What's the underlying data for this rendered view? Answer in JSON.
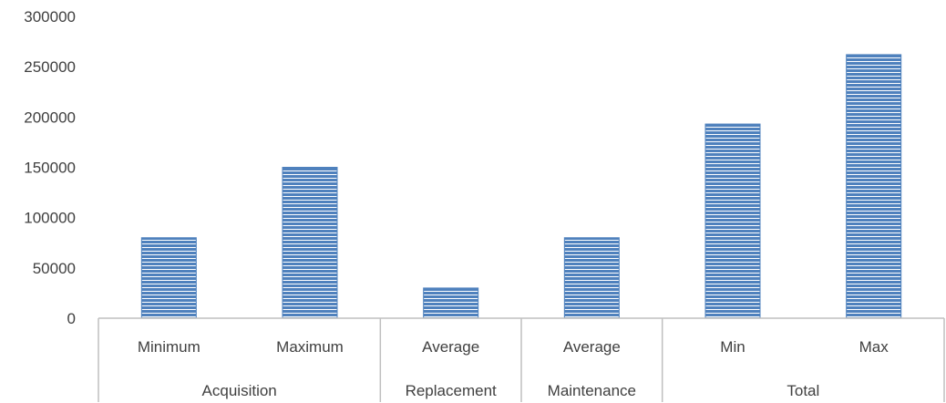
{
  "chart_data": {
    "type": "bar",
    "title": "",
    "xlabel": "",
    "ylabel": "",
    "ylim": [
      0,
      300000
    ],
    "yticks": [
      "0",
      "50000",
      "100000",
      "150000",
      "200000",
      "250000",
      "300000"
    ],
    "categories": [
      "Minimum",
      "Maximum",
      "Average",
      "Average",
      "Min",
      "Max"
    ],
    "groups": [
      {
        "label": "Acquisition",
        "count": 2
      },
      {
        "label": "Replacement",
        "count": 1
      },
      {
        "label": "Maintenance",
        "count": 1
      },
      {
        "label": "Total",
        "count": 2
      }
    ],
    "values": [
      80000,
      150000,
      30000,
      80000,
      193000,
      262000
    ],
    "grid": false,
    "legend": "none",
    "bar_color": "#4f81bd",
    "bar_stripe_color": "#ffffff",
    "axis_color": "#bfbfbf"
  }
}
